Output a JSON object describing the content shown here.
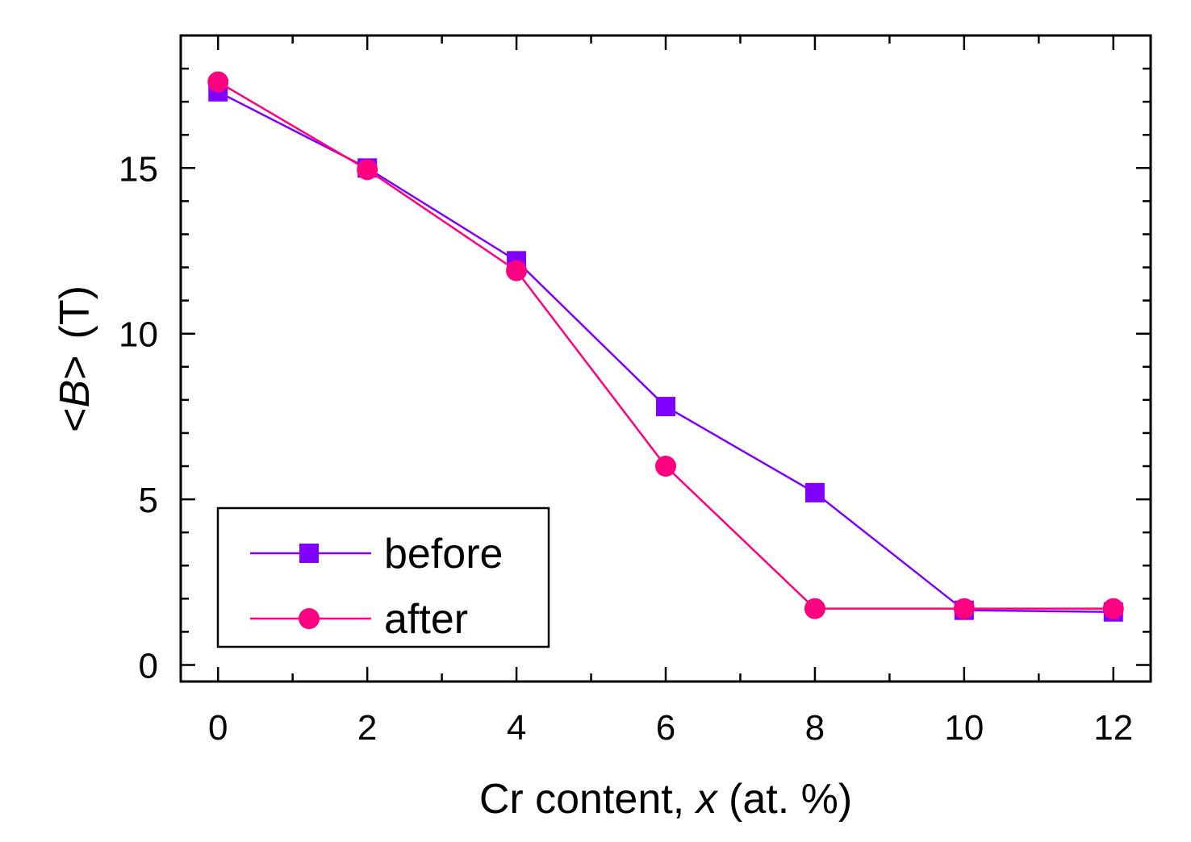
{
  "chart_data": {
    "type": "line",
    "title": "",
    "xlabel": {
      "main": "Cr content, ",
      "var": "x",
      "unit": " (at. %)"
    },
    "ylabel": {
      "pre": "<",
      "var": "B",
      "post": ">",
      "unit": "(T)"
    },
    "xlim": [
      -0.5,
      12.5
    ],
    "ylim": [
      -0.5,
      19
    ],
    "xticks": [
      0,
      2,
      4,
      6,
      8,
      10,
      12
    ],
    "xtick_labels": [
      "0",
      "2",
      "4",
      "6",
      "8",
      "10",
      "12"
    ],
    "yticks": [
      0,
      5,
      10,
      15
    ],
    "ytick_labels": [
      "0",
      "5",
      "10",
      "15"
    ],
    "x_minor_step": 1,
    "y_minor_step": 1,
    "grid": false,
    "legend_position": "bottom-left",
    "series": [
      {
        "name": "before",
        "marker": "square",
        "color": "#8000ff",
        "x": [
          0,
          2,
          4,
          6,
          8,
          10,
          12
        ],
        "y": [
          17.3,
          15.0,
          12.2,
          7.8,
          5.2,
          1.65,
          1.6
        ]
      },
      {
        "name": "after",
        "marker": "circle",
        "color": "#ff0080",
        "x": [
          0,
          2,
          4,
          6,
          8,
          10,
          12
        ],
        "y": [
          17.6,
          14.95,
          11.9,
          6.0,
          1.7,
          1.7,
          1.7
        ]
      }
    ]
  }
}
